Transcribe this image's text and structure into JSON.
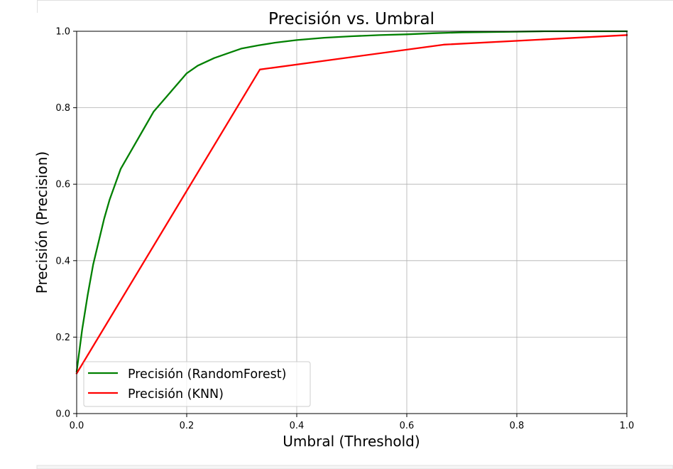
{
  "chart_data": {
    "type": "line",
    "title": "Precisión vs. Umbral",
    "xlabel": "Umbral (Threshold)",
    "ylabel": "Precisión (Precision)",
    "xlim": [
      0.0,
      1.0
    ],
    "ylim": [
      0.0,
      1.0
    ],
    "xticks": [
      "0.0",
      "0.2",
      "0.4",
      "0.6",
      "0.8",
      "1.0"
    ],
    "yticks": [
      "0.0",
      "0.2",
      "0.4",
      "0.6",
      "0.8",
      "1.0"
    ],
    "grid": true,
    "legend_position": "lower-left",
    "series": [
      {
        "name": "Precisión (RandomForest)",
        "color": "#008000",
        "x": [
          0.0,
          0.01,
          0.02,
          0.03,
          0.04,
          0.05,
          0.06,
          0.08,
          0.1,
          0.12,
          0.14,
          0.17,
          0.2,
          0.22,
          0.25,
          0.28,
          0.3,
          0.33,
          0.36,
          0.4,
          0.45,
          0.5,
          0.55,
          0.6,
          0.65,
          0.7,
          0.75,
          0.8,
          0.85,
          0.9,
          0.95,
          1.0
        ],
        "y": [
          0.11,
          0.22,
          0.31,
          0.39,
          0.45,
          0.51,
          0.56,
          0.64,
          0.69,
          0.74,
          0.79,
          0.84,
          0.89,
          0.91,
          0.93,
          0.945,
          0.955,
          0.963,
          0.97,
          0.977,
          0.983,
          0.987,
          0.99,
          0.992,
          0.995,
          0.997,
          0.998,
          0.999,
          1.0,
          1.0,
          1.0,
          1.0
        ]
      },
      {
        "name": "Precisión (KNN)",
        "color": "#ff0000",
        "x": [
          0.0,
          0.333,
          0.667,
          1.0
        ],
        "y": [
          0.105,
          0.9,
          0.965,
          0.99
        ]
      }
    ]
  }
}
